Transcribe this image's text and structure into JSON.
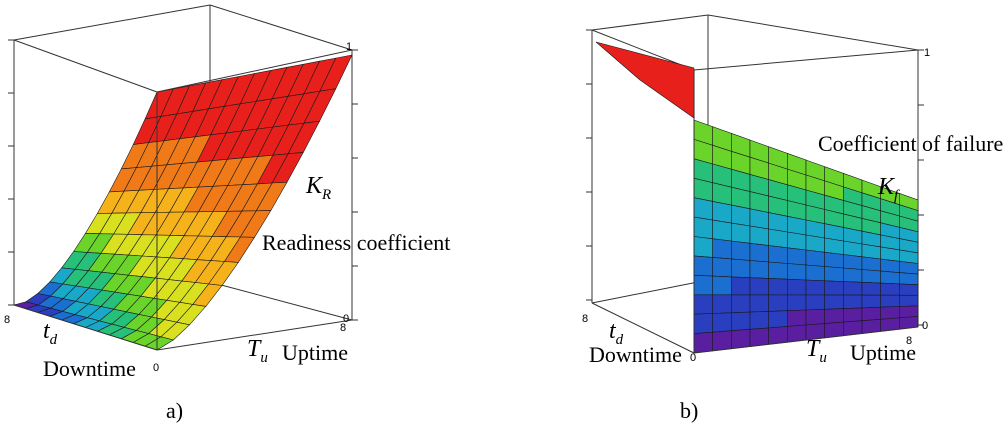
{
  "chart_data": [
    {
      "type": "surface3d",
      "panel": "a)",
      "z_label_symbol": "K",
      "z_label_sub": "R",
      "z_label_text": "Readiness coefficient",
      "x_label_symbol": "T",
      "x_label_sub": "u",
      "x_label_text": "Uptime",
      "y_label_symbol": "t",
      "y_label_sub": "d",
      "y_label_text": "Downtime",
      "z_ticks": [
        "1",
        "0"
      ],
      "x_ticks": [
        "0",
        "8"
      ],
      "y_ticks": [
        "8"
      ],
      "zlim": [
        0,
        1
      ],
      "xlim": [
        0,
        8
      ],
      "ylim": [
        0,
        8
      ],
      "colormap": [
        "#5a1fa0",
        "#2a3fbf",
        "#1a6fd0",
        "#1aa8c8",
        "#26c07a",
        "#6bd42a",
        "#d8e020",
        "#f6b21a",
        "#f07a18",
        "#e8201c"
      ]
    },
    {
      "type": "surface3d",
      "panel": "b)",
      "z_label_symbol": "K",
      "z_label_sub": "f",
      "z_label_text": "Coefficient of failure",
      "x_label_symbol": "T",
      "x_label_sub": "u",
      "x_label_text": "Uptime",
      "y_label_symbol": "t",
      "y_label_sub": "d",
      "y_label_text": "Downtime",
      "z_ticks": [
        "1",
        "0"
      ],
      "x_ticks": [
        "0",
        "8"
      ],
      "y_ticks": [
        "8"
      ],
      "zlim": [
        0,
        1
      ],
      "xlim": [
        0,
        8
      ],
      "ylim": [
        0,
        8
      ],
      "colormap": [
        "#5a1fa0",
        "#2a3fbf",
        "#1a6fd0",
        "#1aa8c8",
        "#26c07a",
        "#6bd42a",
        "#d8e020",
        "#f6b21a",
        "#f07a18",
        "#e8201c"
      ]
    }
  ]
}
